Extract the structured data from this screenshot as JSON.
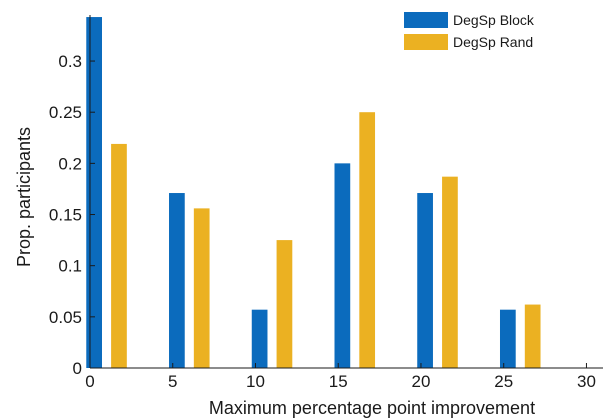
{
  "chart_data": {
    "type": "bar",
    "title": "",
    "xlabel": "Maximum percentage point improvement",
    "ylabel": "Prop. participants",
    "xlim": [
      0,
      31
    ],
    "ylim": [
      0,
      0.345
    ],
    "x_ticks": [
      0,
      5,
      10,
      15,
      20,
      25,
      30
    ],
    "x_tick_labels": [
      "0",
      "5",
      "10",
      "15",
      "20",
      "25",
      "30"
    ],
    "y_ticks": [
      0,
      0.05,
      0.1,
      0.15,
      0.2,
      0.25,
      0.3
    ],
    "y_tick_labels": [
      "0",
      "0.05",
      "0.1",
      "0.15",
      "0.2",
      "0.25",
      "0.3"
    ],
    "grid": false,
    "legend_position": "top-right",
    "x": [
      0,
      5,
      10,
      15,
      20,
      25,
      30
    ],
    "series": [
      {
        "name": "DegSp Block",
        "color": "#0b6bbd",
        "values": [
          0.343,
          0.171,
          0.057,
          0.2,
          0.171,
          0.057,
          0
        ]
      },
      {
        "name": "DegSp Rand",
        "color": "#ebb122",
        "values": [
          0.219,
          0.156,
          0.125,
          0.25,
          0.187,
          0.062,
          0
        ]
      }
    ]
  }
}
